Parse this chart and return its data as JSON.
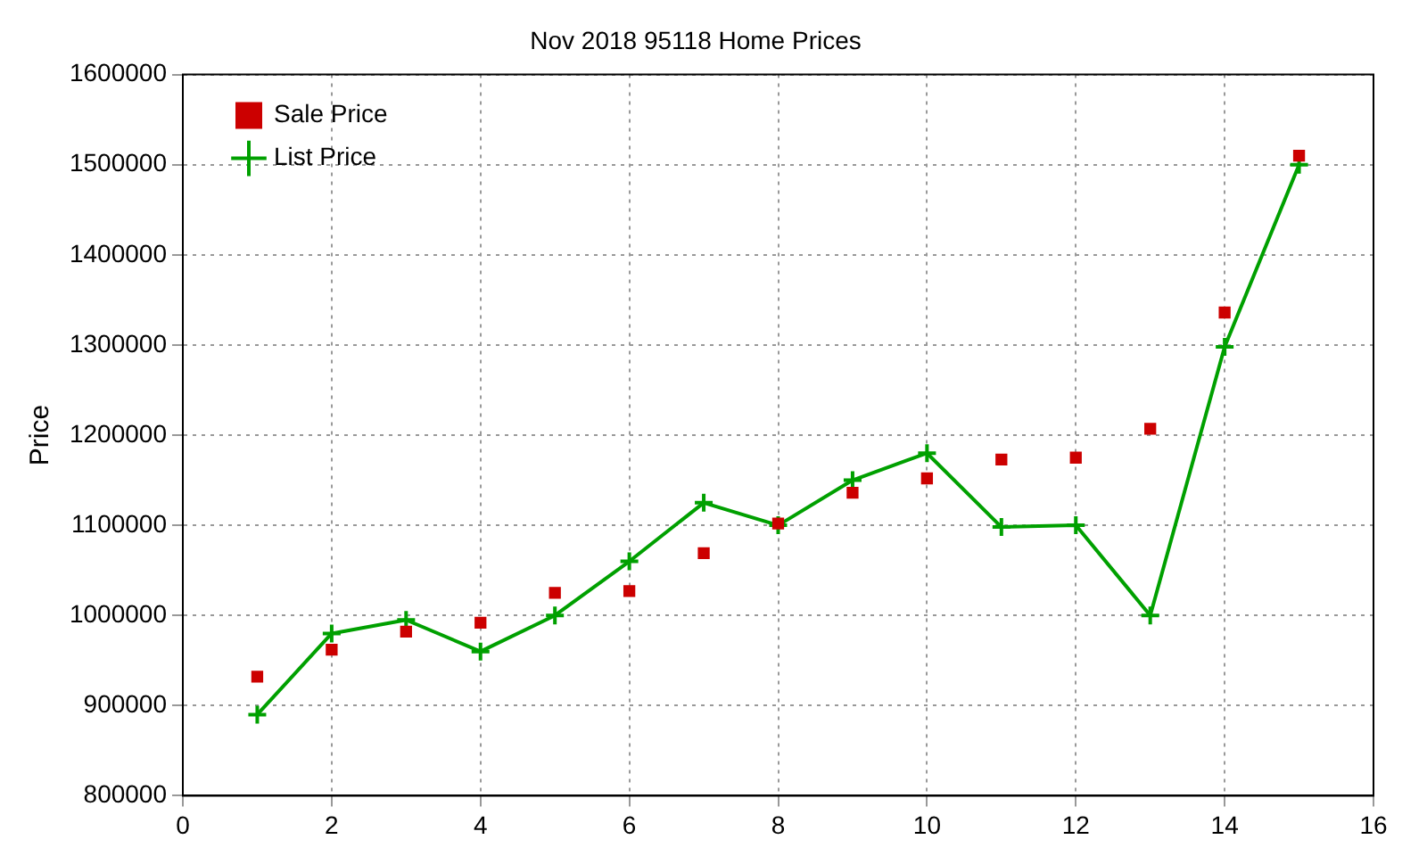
{
  "chart_data": {
    "type": "line",
    "title": "Nov 2018 95118 Home Prices",
    "ylabel": "Price",
    "x": [
      1,
      2,
      3,
      4,
      5,
      6,
      7,
      8,
      9,
      10,
      11,
      12,
      13,
      14,
      15
    ],
    "series": [
      {
        "name": "List Price",
        "type": "line",
        "color": "#00a000",
        "marker": "cross",
        "line_style": "solid",
        "values": [
          890000,
          980000,
          995000,
          960000,
          1000000,
          1060000,
          1125000,
          1100000,
          1150000,
          1180000,
          1098000,
          1100000,
          1000000,
          1298000,
          1500000
        ]
      },
      {
        "name": "Sale Price",
        "type": "scatter",
        "color": "#cc0000",
        "marker": "square",
        "values": [
          932000,
          962000,
          982000,
          992000,
          1025000,
          1027000,
          1069000,
          1102000,
          1136000,
          1152000,
          1173000,
          1175000,
          1207000,
          1336000,
          1510000
        ]
      }
    ],
    "xlim": [
      0,
      16
    ],
    "xticks": [
      0,
      2,
      4,
      6,
      8,
      10,
      12,
      14,
      16
    ],
    "ylim": [
      800000,
      1600000
    ],
    "yticks": [
      800000,
      900000,
      1000000,
      1100000,
      1200000,
      1300000,
      1400000,
      1500000,
      1600000
    ],
    "grid": true,
    "legend": "top left"
  }
}
